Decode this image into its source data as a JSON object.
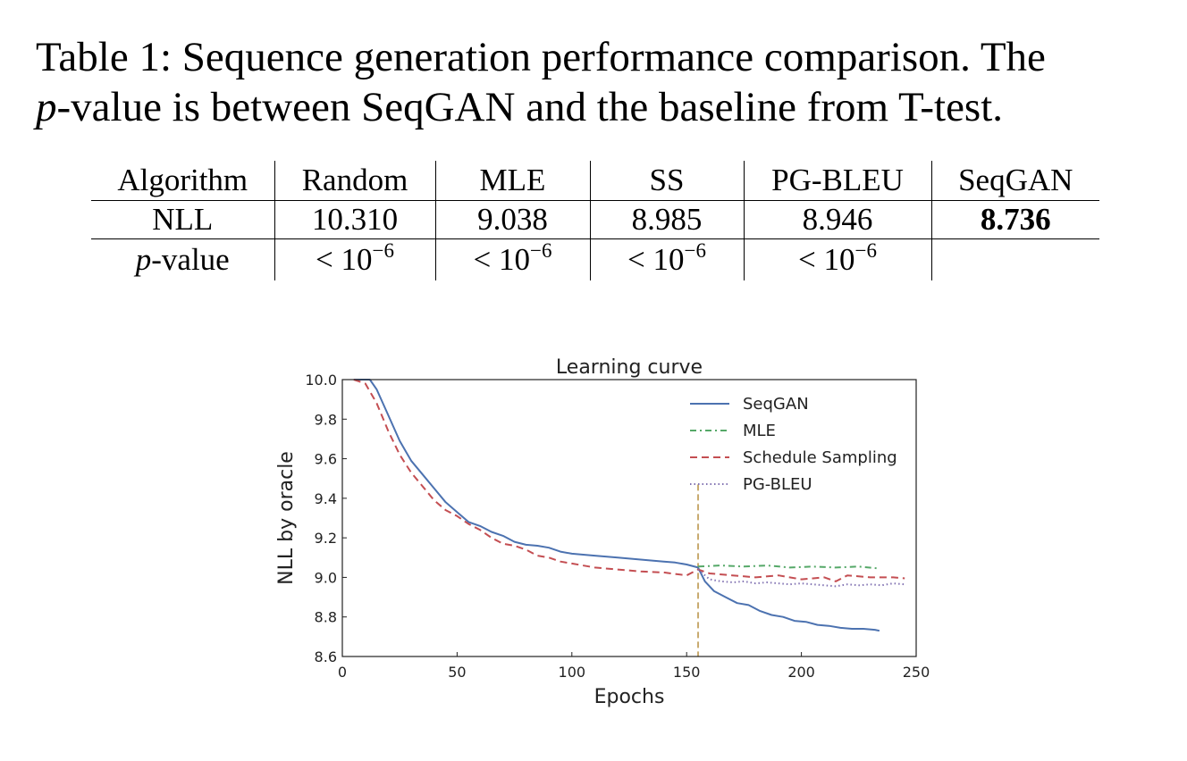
{
  "caption": {
    "prefix": "Table 1: Sequence generation performance comparison. The",
    "p_symbol": "p",
    "suffix": "-value is between SeqGAN and the baseline from T-test."
  },
  "table": {
    "headers": [
      "Algorithm",
      "Random",
      "MLE",
      "SS",
      "PG-BLEU",
      "SeqGAN"
    ],
    "nll_row": {
      "label": "NLL",
      "values": [
        "10.310",
        "9.038",
        "8.985",
        "8.946",
        "8.736"
      ]
    },
    "pvalue_row": {
      "label_symbol": "p",
      "label_suffix": "-value",
      "values": [
        "< 10",
        "< 10",
        "< 10",
        "< 10",
        ""
      ],
      "exponent": "−6"
    }
  },
  "chart_data": {
    "type": "line",
    "title": "Learning curve",
    "xlabel": "Epochs",
    "ylabel": "NLL by oracle",
    "xlim": [
      0,
      250
    ],
    "ylim": [
      8.6,
      10.0
    ],
    "xticks": [
      0,
      50,
      100,
      150,
      200,
      250
    ],
    "yticks": [
      8.6,
      8.8,
      9.0,
      9.2,
      9.4,
      9.6,
      9.8,
      10.0
    ],
    "legend_position": "top-right",
    "grid": false,
    "vertical_marker": {
      "x": 155,
      "ymax": 9.47,
      "color": "#c8aa6e"
    },
    "series": [
      {
        "name": "SeqGAN",
        "color": "#4c72b0",
        "style": "solid",
        "points": [
          [
            5,
            10.0
          ],
          [
            12,
            10.0
          ],
          [
            15,
            9.95
          ],
          [
            20,
            9.82
          ],
          [
            25,
            9.69
          ],
          [
            30,
            9.59
          ],
          [
            35,
            9.52
          ],
          [
            40,
            9.45
          ],
          [
            45,
            9.38
          ],
          [
            50,
            9.33
          ],
          [
            55,
            9.28
          ],
          [
            60,
            9.26
          ],
          [
            65,
            9.23
          ],
          [
            70,
            9.21
          ],
          [
            75,
            9.18
          ],
          [
            80,
            9.165
          ],
          [
            85,
            9.16
          ],
          [
            90,
            9.15
          ],
          [
            95,
            9.13
          ],
          [
            100,
            9.12
          ],
          [
            110,
            9.11
          ],
          [
            120,
            9.1
          ],
          [
            130,
            9.09
          ],
          [
            140,
            9.08
          ],
          [
            145,
            9.075
          ],
          [
            150,
            9.065
          ],
          [
            155,
            9.05
          ],
          [
            158,
            8.98
          ],
          [
            162,
            8.93
          ],
          [
            167,
            8.9
          ],
          [
            172,
            8.87
          ],
          [
            177,
            8.86
          ],
          [
            182,
            8.83
          ],
          [
            187,
            8.81
          ],
          [
            192,
            8.8
          ],
          [
            197,
            8.78
          ],
          [
            202,
            8.775
          ],
          [
            207,
            8.76
          ],
          [
            212,
            8.755
          ],
          [
            217,
            8.745
          ],
          [
            222,
            8.74
          ],
          [
            227,
            8.74
          ],
          [
            232,
            8.735
          ],
          [
            234,
            8.73
          ]
        ]
      },
      {
        "name": "MLE",
        "color": "#55a868",
        "style": "dashdot",
        "points": [
          [
            155,
            9.055
          ],
          [
            165,
            9.06
          ],
          [
            175,
            9.055
          ],
          [
            185,
            9.06
          ],
          [
            195,
            9.05
          ],
          [
            205,
            9.055
          ],
          [
            215,
            9.05
          ],
          [
            225,
            9.055
          ],
          [
            234,
            9.045
          ]
        ]
      },
      {
        "name": "Schedule Sampling",
        "color": "#c44e52",
        "style": "dashed",
        "points": [
          [
            5,
            10.0
          ],
          [
            10,
            9.98
          ],
          [
            15,
            9.88
          ],
          [
            20,
            9.74
          ],
          [
            25,
            9.62
          ],
          [
            30,
            9.53
          ],
          [
            35,
            9.46
          ],
          [
            40,
            9.39
          ],
          [
            45,
            9.34
          ],
          [
            50,
            9.31
          ],
          [
            55,
            9.27
          ],
          [
            60,
            9.24
          ],
          [
            65,
            9.2
          ],
          [
            70,
            9.17
          ],
          [
            75,
            9.16
          ],
          [
            80,
            9.14
          ],
          [
            85,
            9.11
          ],
          [
            90,
            9.1
          ],
          [
            95,
            9.08
          ],
          [
            100,
            9.07
          ],
          [
            110,
            9.05
          ],
          [
            120,
            9.04
          ],
          [
            130,
            9.03
          ],
          [
            140,
            9.025
          ],
          [
            150,
            9.01
          ],
          [
            155,
            9.04
          ],
          [
            160,
            9.02
          ],
          [
            170,
            9.01
          ],
          [
            180,
            9.0
          ],
          [
            190,
            9.01
          ],
          [
            200,
            8.99
          ],
          [
            210,
            9.0
          ],
          [
            215,
            8.98
          ],
          [
            220,
            9.01
          ],
          [
            230,
            9.0
          ],
          [
            240,
            9.0
          ],
          [
            245,
            8.995
          ]
        ]
      },
      {
        "name": "PG-BLEU",
        "color": "#8172b2",
        "style": "dotted",
        "points": [
          [
            155,
            9.04
          ],
          [
            160,
            8.99
          ],
          [
            165,
            8.98
          ],
          [
            170,
            8.975
          ],
          [
            175,
            8.98
          ],
          [
            180,
            8.97
          ],
          [
            185,
            8.975
          ],
          [
            190,
            8.97
          ],
          [
            195,
            8.965
          ],
          [
            200,
            8.97
          ],
          [
            205,
            8.965
          ],
          [
            210,
            8.96
          ],
          [
            215,
            8.955
          ],
          [
            220,
            8.965
          ],
          [
            225,
            8.96
          ],
          [
            230,
            8.965
          ],
          [
            235,
            8.96
          ],
          [
            240,
            8.97
          ],
          [
            245,
            8.965
          ]
        ]
      }
    ]
  }
}
